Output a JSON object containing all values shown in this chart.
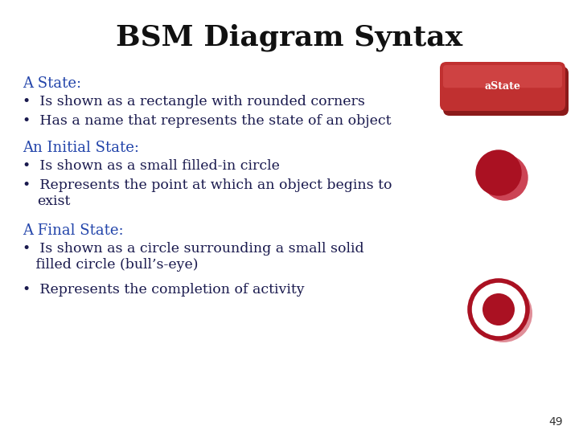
{
  "title": "BSM Diagram Syntax",
  "title_fontsize": 26,
  "title_fontweight": "bold",
  "title_fontfamily": "serif",
  "background_color": "#ffffff",
  "text_color_body": "#1a1a4e",
  "section_label_color": "#2244aa",
  "section_labels": [
    "A State:",
    "An Initial State:",
    "A Final State:"
  ],
  "bullets": [
    [
      "Is shown as a rectangle with rounded corners",
      "Has a name that represents the state of an object"
    ],
    [
      "Is shown as a small filled-in circle",
      "Represents the point at which an object begins to\nexist"
    ],
    [
      "Is shown as a circle surrounding a small solid\nfilled circle (bull’s-eye)",
      "Represents the completion of activity"
    ]
  ],
  "page_number": "49",
  "state_box_main_color": "#c03030",
  "state_box_shadow_color": "#8b1a1a",
  "state_box_highlight_color": "#dd5555",
  "state_text": "aState",
  "state_text_color": "#ffffff",
  "initial_circle_color": "#aa1122",
  "initial_circle_highlight": "#cc4455",
  "final_outer_bg": "#ffffff",
  "final_ring_color": "#aa1122",
  "final_inner_color": "#aa1122"
}
